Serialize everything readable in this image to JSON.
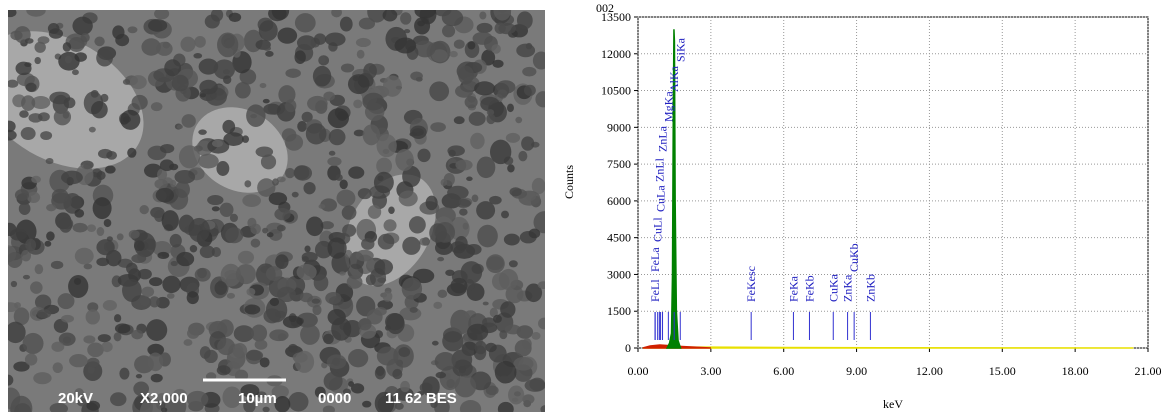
{
  "micrograph": {
    "caption": [
      "20kV",
      "X2,000",
      "10µm",
      "0000",
      "11 62 BES"
    ]
  },
  "chart_data": {
    "type": "line",
    "title": "002",
    "xlabel": "keV",
    "ylabel": "Counts",
    "xlim": [
      0,
      21
    ],
    "ylim": [
      0,
      13500
    ],
    "xticks": [
      {
        "value": 0,
        "label": "0.00"
      },
      {
        "value": 3,
        "label": "3.00"
      },
      {
        "value": 6,
        "label": "6.00"
      },
      {
        "value": 9,
        "label": "9.00"
      },
      {
        "value": 12,
        "label": "12.00"
      },
      {
        "value": 15,
        "label": "15.00"
      },
      {
        "value": 18,
        "label": "18.00"
      },
      {
        "value": 21,
        "label": "21.00"
      }
    ],
    "yticks": [
      0,
      1500,
      3000,
      4500,
      6000,
      7500,
      9000,
      10500,
      12000,
      13500
    ],
    "grid": true,
    "series": [
      {
        "color": "#e8e000",
        "x": [
          0.2,
          0.6,
          1.0,
          2.0,
          6.0,
          10.0,
          15.0,
          20.4
        ],
        "values": [
          0,
          60,
          80,
          40,
          20,
          10,
          5,
          0
        ]
      },
      {
        "color": "#d02000",
        "x": [
          0.2,
          0.5,
          0.9,
          1.2,
          1.8,
          3.0
        ],
        "values": [
          0,
          80,
          120,
          100,
          60,
          0
        ]
      },
      {
        "color": "#008000",
        "x": [
          1.2,
          1.3,
          1.38,
          1.42,
          1.45,
          1.48,
          1.5,
          1.53,
          1.58,
          1.65,
          1.75
        ],
        "values": [
          0,
          200,
          600,
          3000,
          9000,
          13000,
          12500,
          6000,
          1500,
          300,
          0
        ]
      }
    ],
    "annotations": [
      {
        "label": "FeLl",
        "x": 0.7
      },
      {
        "label": "FeLa",
        "x": 0.71
      },
      {
        "label": "CuLl",
        "x": 0.81
      },
      {
        "label": "CuLa",
        "x": 0.93
      },
      {
        "label": "ZnLl",
        "x": 0.88
      },
      {
        "label": "ZnLa",
        "x": 1.01
      },
      {
        "label": "MgKa",
        "x": 1.25
      },
      {
        "label": "AlKa",
        "x": 1.49
      },
      {
        "label": "SiKa",
        "x": 1.74
      },
      {
        "label": "FeKesc",
        "x": 4.66
      },
      {
        "label": "FeKa",
        "x": 6.4
      },
      {
        "label": "FeKb",
        "x": 7.06
      },
      {
        "label": "CuKa",
        "x": 8.04
      },
      {
        "label": "ZnKa",
        "x": 8.63
      },
      {
        "label": "CuKb",
        "x": 8.9
      },
      {
        "label": "ZnKb",
        "x": 9.57
      }
    ]
  }
}
